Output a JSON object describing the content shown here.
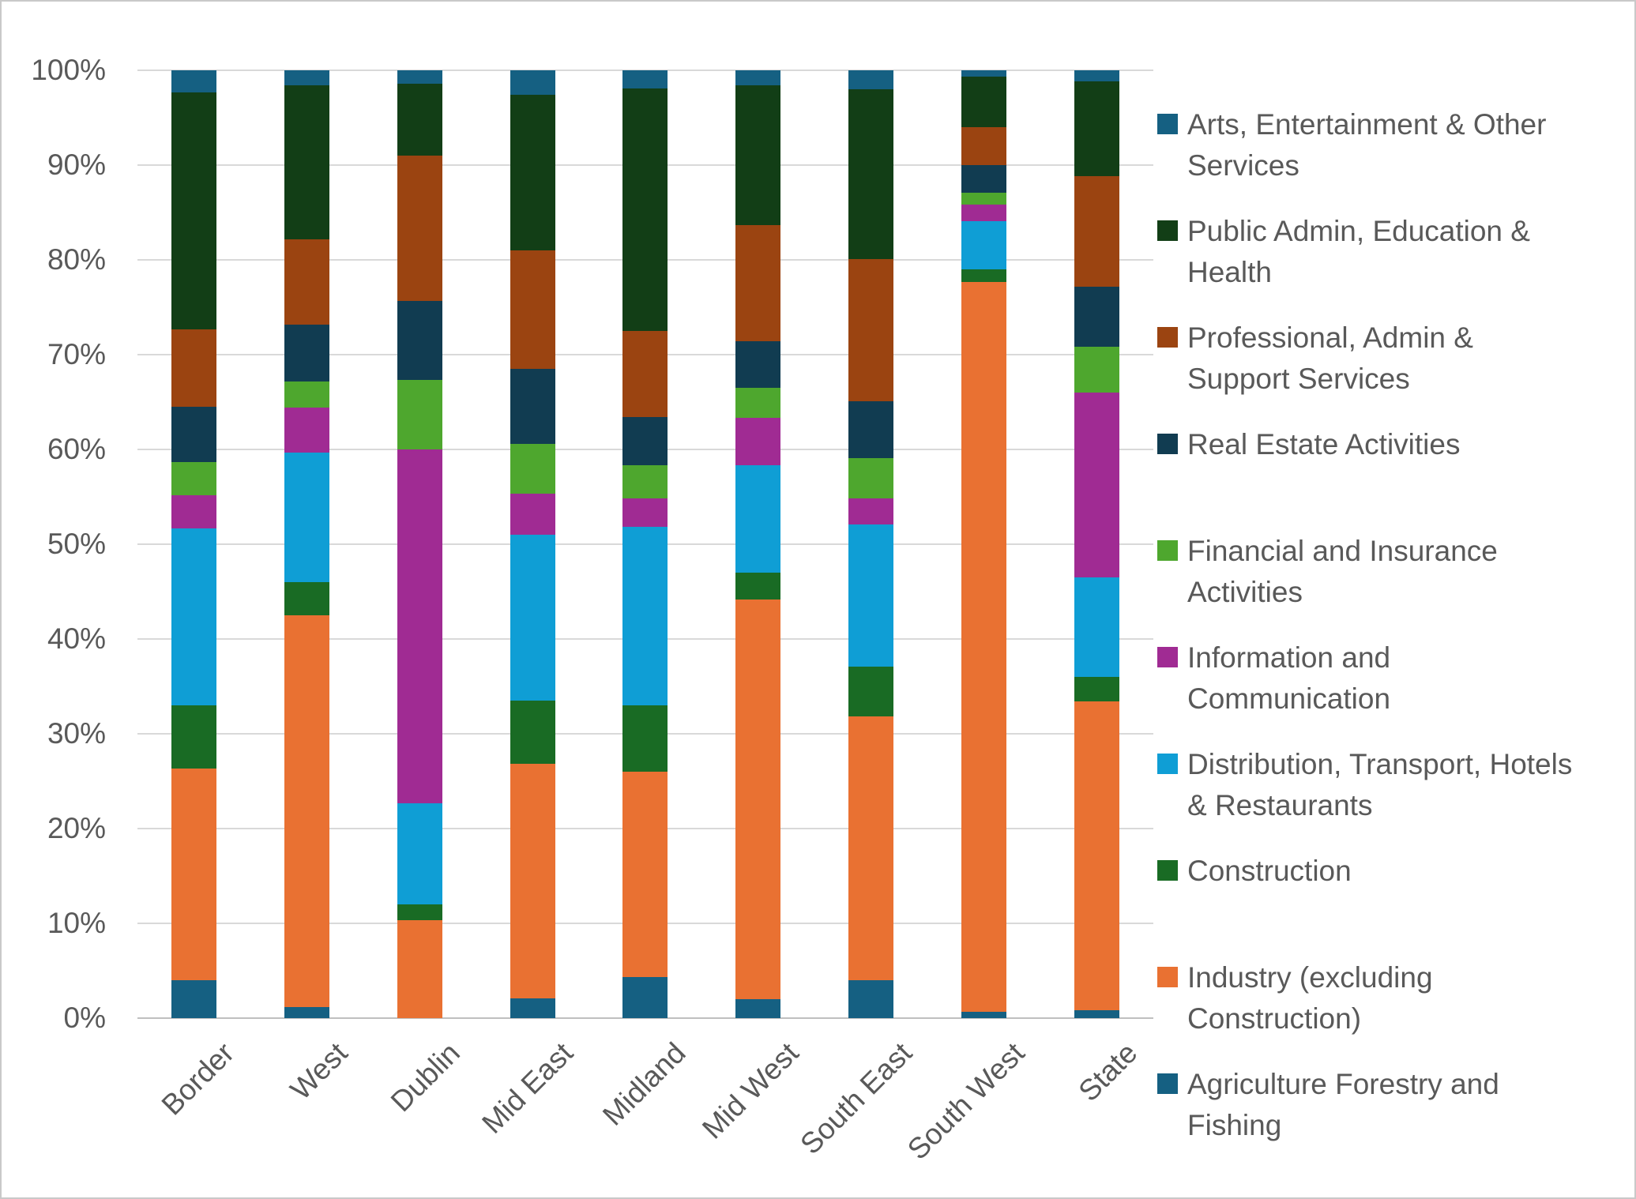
{
  "chart_data": {
    "type": "bar",
    "stacked": true,
    "percent_stacked": true,
    "title": "",
    "xlabel": "",
    "ylabel": "",
    "ylim": [
      0,
      100
    ],
    "grid": true,
    "legend_position": "right",
    "categories": [
      "Border",
      "West",
      "Dublin",
      "Mid East",
      "Midland",
      "Mid West",
      "South East",
      "South West",
      "State"
    ],
    "series": [
      {
        "name": "Agriculture Forestry and Fishing",
        "color": "#156082",
        "legend_lines": [
          "Agriculture Forestry and",
          "Fishing"
        ],
        "values": [
          4.0,
          1.2,
          0.0,
          2.1,
          4.3,
          2.0,
          4.0,
          0.7,
          0.8
        ]
      },
      {
        "name": "Industry (excluding Construction)",
        "color": "#E97132",
        "legend_lines": [
          "Industry (excluding",
          "Construction)"
        ],
        "values": [
          22.3,
          41.3,
          10.3,
          24.7,
          21.7,
          42.2,
          27.8,
          77.0,
          32.6
        ]
      },
      {
        "name": "Construction",
        "color": "#196B24",
        "legend_lines": [
          "Construction"
        ],
        "values": [
          6.7,
          3.5,
          1.7,
          6.7,
          7.0,
          2.8,
          5.3,
          1.3,
          2.6
        ]
      },
      {
        "name": "Distribution, Transport, Hotels & Restaurants",
        "color": "#0F9ED5",
        "legend_lines": [
          "Distribution, Transport, Hotels",
          "& Restaurants"
        ],
        "values": [
          18.7,
          13.7,
          10.7,
          17.5,
          18.8,
          11.3,
          15.0,
          5.1,
          10.5
        ]
      },
      {
        "name": "Information and Communication",
        "color": "#A02B93",
        "legend_lines": [
          "Information and",
          "Communication"
        ],
        "values": [
          3.5,
          4.7,
          37.3,
          4.3,
          3.0,
          5.0,
          2.7,
          1.7,
          19.5
        ]
      },
      {
        "name": "Financial and Insurance Activities",
        "color": "#4EA72E",
        "legend_lines": [
          "Financial and Insurance",
          "Activities"
        ],
        "values": [
          3.5,
          2.8,
          7.3,
          5.3,
          3.5,
          3.2,
          4.3,
          1.3,
          4.8
        ]
      },
      {
        "name": "Real Estate Activities",
        "color": "#113C51",
        "legend_lines": [
          "Real Estate Activities"
        ],
        "values": [
          5.8,
          6.0,
          8.4,
          7.9,
          5.1,
          4.9,
          6.0,
          2.9,
          6.4
        ]
      },
      {
        "name": "Professional, Admin & Support Services",
        "color": "#9B4411",
        "legend_lines": [
          "Professional, Admin &",
          "Support Services"
        ],
        "values": [
          8.2,
          9.0,
          15.3,
          12.5,
          9.1,
          12.3,
          15.0,
          4.0,
          11.6
        ]
      },
      {
        "name": "Public Admin, Education & Health",
        "color": "#123E16",
        "legend_lines": [
          "Public Admin, Education &",
          "Health"
        ],
        "values": [
          25.0,
          16.2,
          7.6,
          16.4,
          25.6,
          14.7,
          17.9,
          5.3,
          10.0
        ]
      },
      {
        "name": "Arts, Entertainment & Other Services",
        "color": "#156082",
        "legend_lines": [
          "Arts, Entertainment & Other",
          "Services"
        ],
        "values": [
          2.3,
          1.6,
          1.4,
          2.6,
          1.9,
          1.6,
          2.0,
          0.7,
          1.2
        ]
      }
    ],
    "y_axis": {
      "ticks": [
        {
          "value": 0,
          "label": "0%"
        },
        {
          "value": 10,
          "label": "10%"
        },
        {
          "value": 20,
          "label": "20%"
        },
        {
          "value": 30,
          "label": "30%"
        },
        {
          "value": 40,
          "label": "40%"
        },
        {
          "value": 50,
          "label": "50%"
        },
        {
          "value": 60,
          "label": "60%"
        },
        {
          "value": 70,
          "label": "70%"
        },
        {
          "value": 80,
          "label": "80%"
        },
        {
          "value": 90,
          "label": "90%"
        },
        {
          "value": 100,
          "label": "100%"
        }
      ]
    },
    "colors": {
      "axis_text": "#595959",
      "gridline": "#D9D9D9",
      "axis_line": "#BFBFBF",
      "background": "#FFFFFF"
    }
  }
}
